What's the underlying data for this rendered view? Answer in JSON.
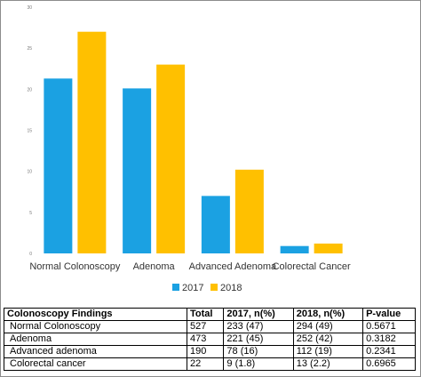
{
  "colors": {
    "series_2017": "#1ba1e2",
    "series_2018": "#ffc000"
  },
  "chart_data": {
    "type": "bar",
    "categories": [
      "Normal Colonoscopy",
      "Adenoma",
      "Advanced Adenoma",
      "Colorectal Cancer"
    ],
    "series": [
      {
        "name": "2017",
        "values": [
          21.3,
          20.1,
          7.0,
          0.9
        ]
      },
      {
        "name": "2018",
        "values": [
          27.0,
          23.0,
          10.2,
          1.2
        ]
      }
    ],
    "yticks": [
      0,
      5,
      10,
      15,
      20,
      25,
      30
    ],
    "ylim": [
      0,
      30
    ],
    "grid": false,
    "legend": "bottom"
  },
  "table": {
    "headers": [
      "Colonoscopy Findings",
      "Total",
      "2017, n(%)",
      "2018, n(%)",
      "P-value"
    ],
    "rows": [
      [
        "Normal Colonoscopy",
        "527",
        "233 (47)",
        "294 (49)",
        "0.5671"
      ],
      [
        "Adenoma",
        "473",
        "221 (45)",
        "252 (42)",
        "0.3182"
      ],
      [
        "Advanced adenoma",
        "190",
        "78 (16)",
        "112 (19)",
        "0.2341"
      ],
      [
        "Colorectal cancer",
        "22",
        "9 (1.8)",
        "13 (2.2)",
        "0.6965"
      ]
    ]
  }
}
